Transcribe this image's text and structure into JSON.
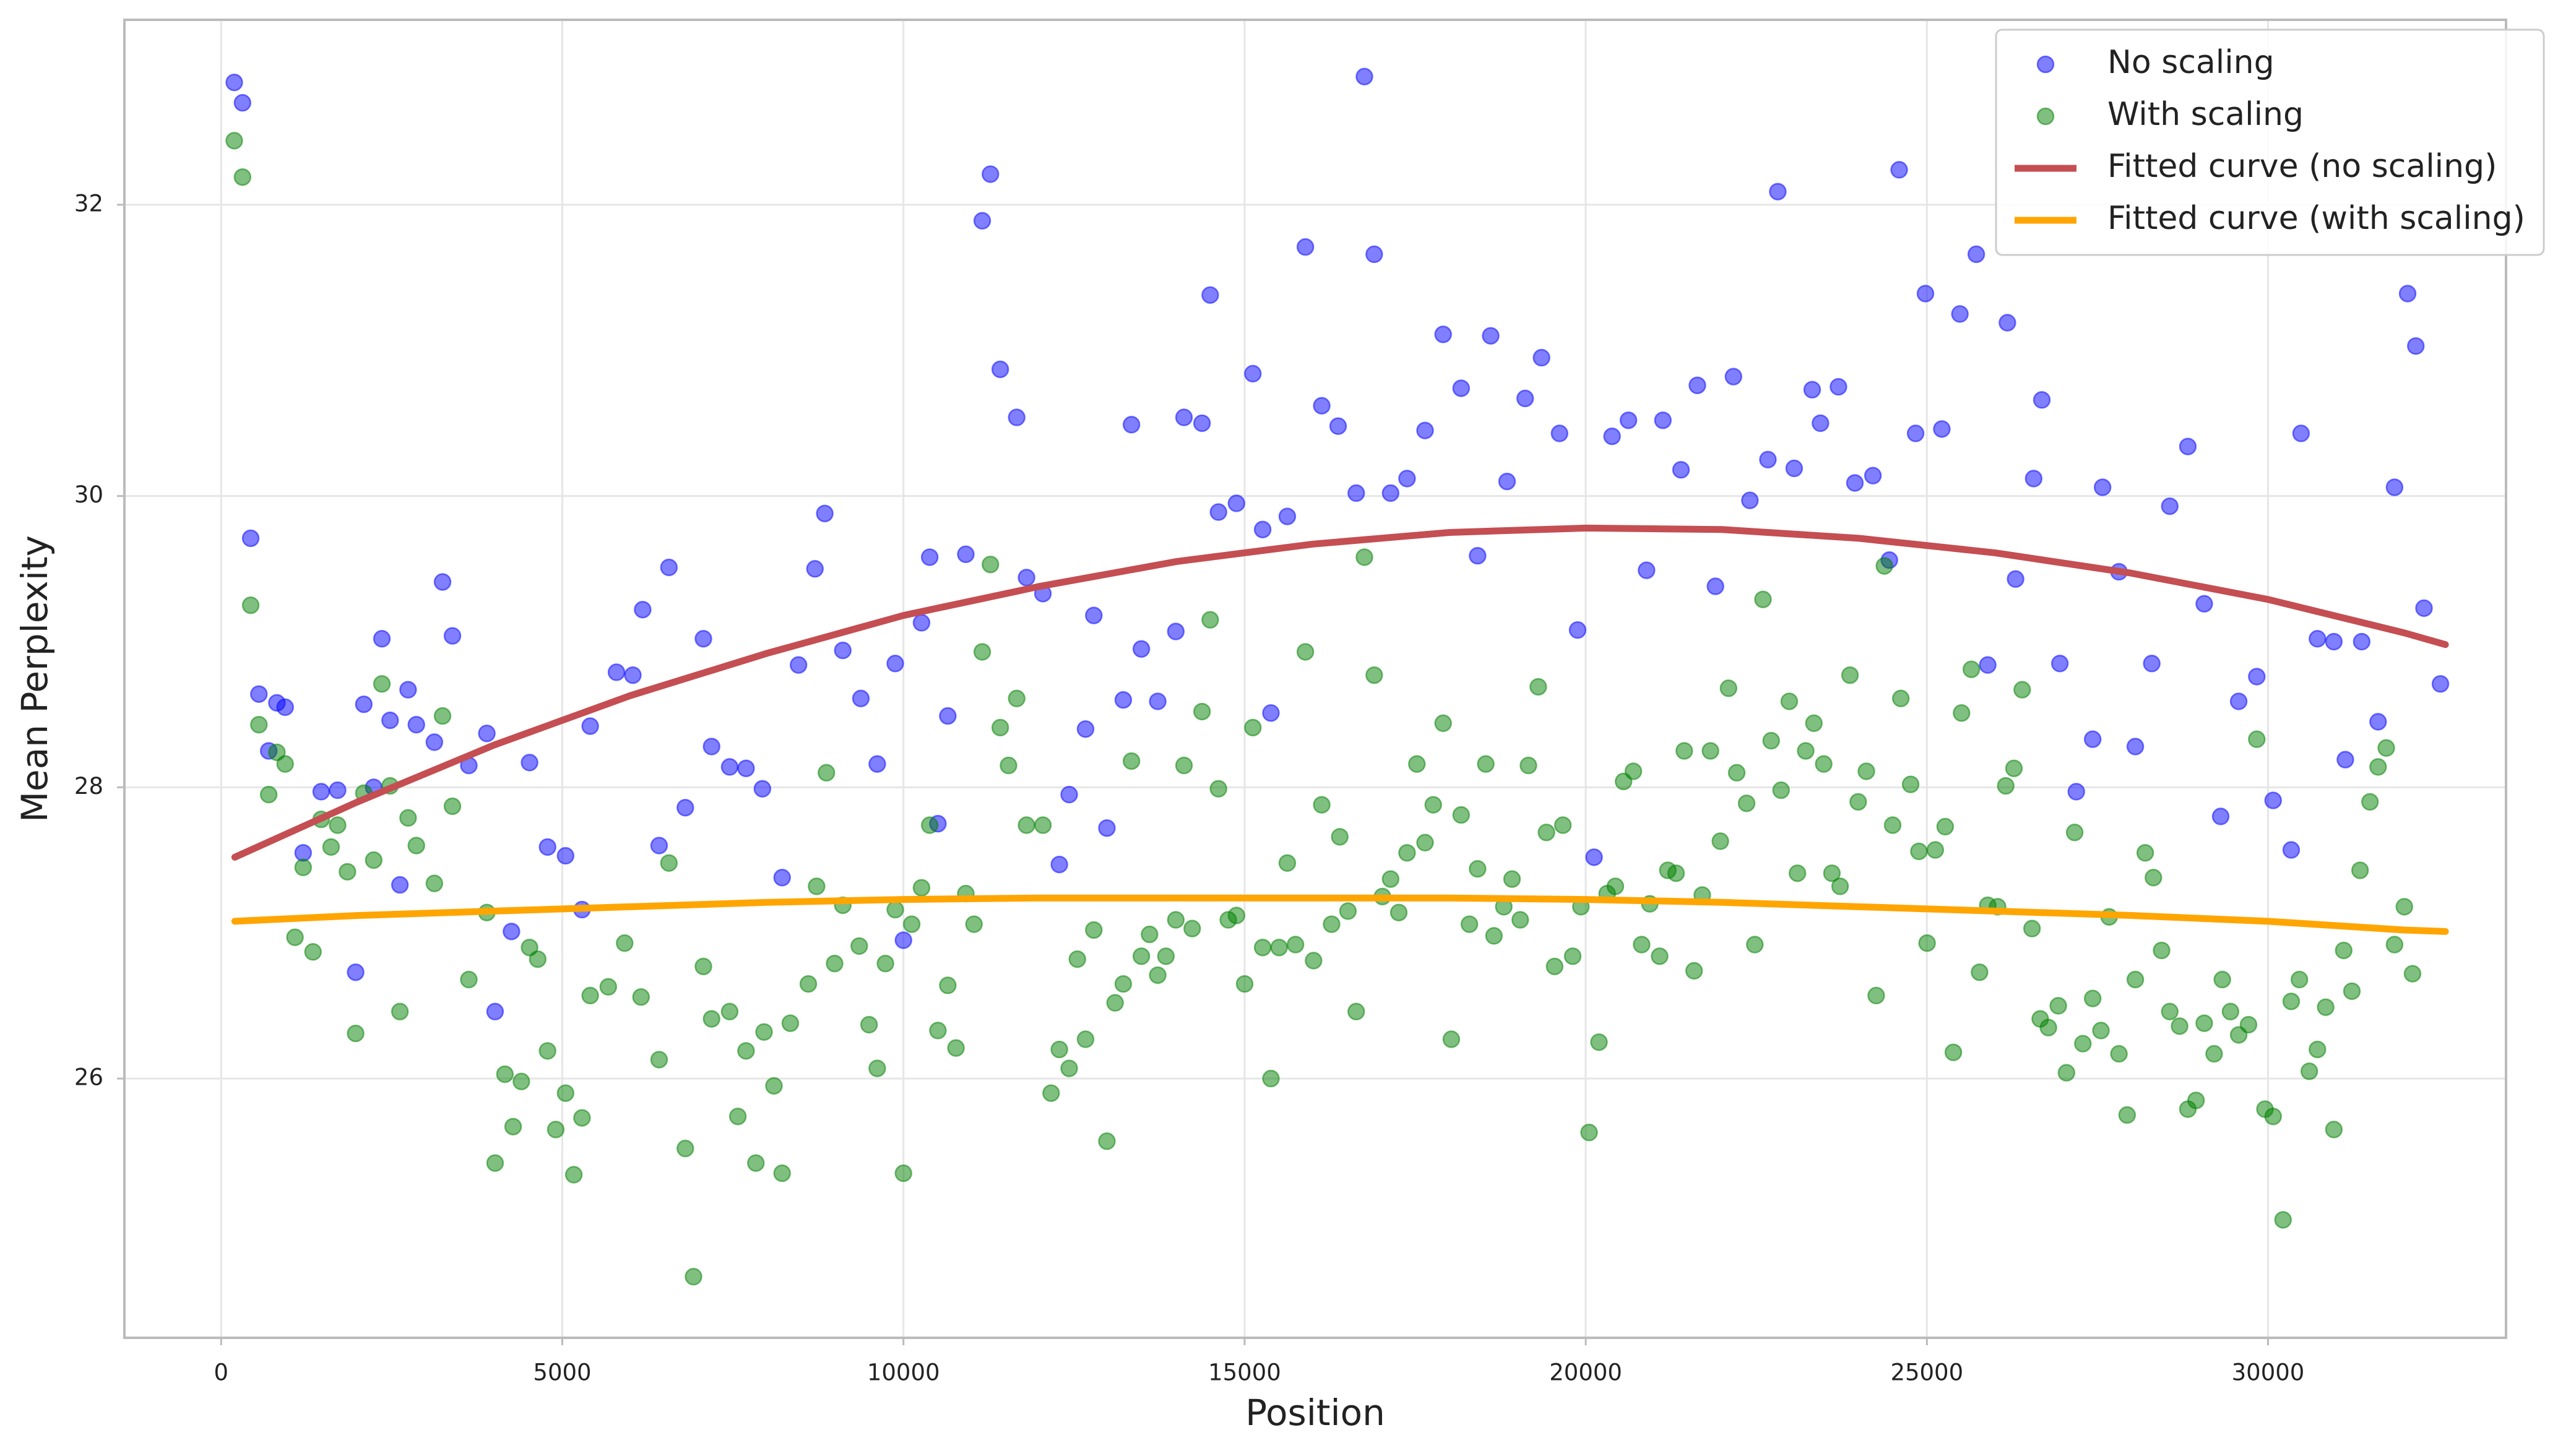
{
  "chart_data": {
    "type": "scatter",
    "xlabel": "Position",
    "ylabel": "Mean Perplexity",
    "xlim": [
      -1418,
      33488
    ],
    "ylim": [
      24.22,
      33.27
    ],
    "xticks": [
      0,
      5000,
      10000,
      15000,
      20000,
      25000,
      30000
    ],
    "yticks": [
      26,
      28,
      30,
      32
    ],
    "grid": true,
    "legend": "upper right",
    "series": [
      {
        "name": "No scaling",
        "type": "scatter",
        "color": "#0000ff",
        "alpha": 0.5,
        "x": [
          192,
          313,
          433,
          553,
          697,
          817,
          938,
          1202,
          1466,
          1707,
          1971,
          2091,
          2236,
          2356,
          2476,
          2620,
          2740,
          2861,
          3125,
          3245,
          3390,
          3630,
          3894,
          4015,
          4255,
          4520,
          4784,
          5048,
          5289,
          5409,
          5794,
          6034,
          6178,
          6419,
          6563,
          6803,
          7068,
          7188,
          7453,
          7693,
          7933,
          8222,
          8462,
          8703,
          8847,
          9111,
          9376,
          9616,
          9880,
          10000,
          10265,
          10385,
          10505,
          10650,
          10914,
          11155,
          11275,
          11419,
          11660,
          11804,
          12044,
          12285,
          12429,
          12669,
          12790,
          12982,
          13222,
          13342,
          13487,
          13727,
          13992,
          14112,
          14376,
          14496,
          14617,
          14881,
          15121,
          15265,
          15386,
          15626,
          15891,
          16131,
          16371,
          16636,
          16756,
          16900,
          17140,
          17381,
          17645,
          17910,
          18174,
          18415,
          18607,
          18847,
          19112,
          19352,
          19616,
          19881,
          20122,
          20386,
          20626,
          20891,
          21131,
          21396,
          21636,
          21901,
          22165,
          22406,
          22670,
          22815,
          23055,
          23319,
          23440,
          23704,
          23945,
          24209,
          24450,
          24594,
          24835,
          24979,
          25219,
          25484,
          25724,
          25892,
          26180,
          26300,
          26565,
          26685,
          26949,
          27190,
          27430,
          27575,
          27815,
          28055,
          28296,
          28560,
          28825,
          29065,
          29306,
          29570,
          29835,
          30075,
          30340,
          30484,
          30724,
          30965,
          31133,
          31373,
          31613,
          31854,
          32046,
          32166,
          32286,
          32527
        ],
        "values": [
          32.84,
          32.7,
          29.71,
          28.64,
          28.25,
          28.58,
          28.55,
          27.55,
          27.97,
          27.98,
          26.73,
          28.57,
          28.0,
          29.02,
          28.46,
          27.33,
          28.67,
          28.43,
          28.31,
          29.41,
          29.04,
          28.15,
          28.37,
          26.46,
          27.01,
          28.17,
          27.59,
          27.53,
          27.16,
          28.42,
          28.79,
          28.77,
          29.22,
          27.6,
          29.51,
          27.86,
          29.02,
          28.28,
          28.14,
          28.13,
          27.99,
          27.38,
          28.84,
          29.5,
          29.88,
          28.94,
          28.61,
          28.16,
          28.85,
          26.95,
          29.13,
          29.58,
          27.75,
          28.49,
          29.6,
          31.89,
          32.21,
          30.87,
          30.54,
          29.44,
          29.33,
          27.47,
          27.95,
          28.4,
          29.18,
          27.72,
          28.6,
          30.49,
          28.95,
          28.59,
          29.07,
          30.54,
          30.5,
          31.38,
          29.89,
          29.95,
          30.84,
          29.77,
          28.51,
          29.86,
          31.71,
          30.62,
          30.48,
          30.02,
          32.88,
          31.66,
          30.02,
          30.12,
          30.45,
          31.11,
          30.74,
          29.59,
          31.1,
          30.1,
          30.67,
          30.95,
          30.43,
          29.08,
          27.52,
          30.41,
          30.52,
          29.49,
          30.52,
          30.18,
          30.76,
          29.38,
          30.82,
          29.97,
          30.25,
          32.09,
          30.19,
          30.73,
          30.5,
          30.75,
          30.09,
          30.14,
          29.56,
          32.24,
          30.43,
          31.39,
          30.46,
          31.25,
          31.66,
          28.84,
          31.19,
          29.43,
          30.12,
          30.66,
          28.85,
          27.97,
          28.33,
          30.06,
          29.48,
          28.28,
          28.85,
          29.93,
          30.34,
          29.26,
          27.8,
          28.59,
          28.76,
          27.91,
          27.57,
          30.43,
          29.02,
          29.0,
          28.19,
          29.0,
          28.45,
          30.06,
          31.39,
          31.03,
          29.23,
          28.71
        ]
      },
      {
        "name": "With scaling",
        "type": "scatter",
        "color": "#008000",
        "alpha": 0.5,
        "x": [
          192,
          313,
          433,
          553,
          697,
          817,
          938,
          1082,
          1202,
          1346,
          1466,
          1611,
          1707,
          1851,
          1971,
          2091,
          2236,
          2356,
          2476,
          2620,
          2740,
          2861,
          3125,
          3245,
          3390,
          3630,
          3894,
          4015,
          4159,
          4279,
          4400,
          4520,
          4640,
          4784,
          4904,
          5048,
          5169,
          5289,
          5409,
          5674,
          5914,
          6154,
          6419,
          6563,
          6803,
          6923,
          7068,
          7188,
          7453,
          7573,
          7693,
          7837,
          7957,
          8102,
          8222,
          8342,
          8606,
          8727,
          8871,
          8991,
          9111,
          9352,
          9496,
          9616,
          9736,
          9880,
          10000,
          10121,
          10265,
          10385,
          10505,
          10650,
          10770,
          10914,
          11034,
          11155,
          11275,
          11419,
          11540,
          11660,
          11804,
          12044,
          12164,
          12285,
          12429,
          12549,
          12669,
          12790,
          12982,
          13102,
          13222,
          13342,
          13487,
          13607,
          13727,
          13847,
          13992,
          14112,
          14232,
          14376,
          14496,
          14617,
          14761,
          14881,
          15001,
          15121,
          15265,
          15386,
          15506,
          15626,
          15746,
          15891,
          16011,
          16131,
          16275,
          16395,
          16515,
          16636,
          16756,
          16900,
          17020,
          17140,
          17260,
          17381,
          17525,
          17645,
          17765,
          17910,
          18030,
          18174,
          18295,
          18415,
          18535,
          18655,
          18799,
          18920,
          19040,
          19160,
          19304,
          19424,
          19544,
          19665,
          19809,
          19929,
          20049,
          20194,
          20314,
          20434,
          20554,
          20698,
          20819,
          20939,
          21083,
          21203,
          21324,
          21444,
          21588,
          21708,
          21828,
          21973,
          22093,
          22213,
          22358,
          22478,
          22598,
          22718,
          22863,
          22983,
          23103,
          23224,
          23344,
          23488,
          23608,
          23728,
          23873,
          23993,
          24113,
          24257,
          24377,
          24498,
          24618,
          24762,
          24883,
          25003,
          25123,
          25268,
          25388,
          25508,
          25652,
          25772,
          25892,
          26036,
          26156,
          26276,
          26397,
          26541,
          26661,
          26781,
          26926,
          27046,
          27166,
          27286,
          27430,
          27551,
          27671,
          27815,
          27935,
          28055,
          28200,
          28320,
          28440,
          28560,
          28704,
          28825,
          28945,
          29065,
          29210,
          29330,
          29450,
          29570,
          29714,
          29835,
          29955,
          30075,
          30220,
          30340,
          30460,
          30605,
          30724,
          30845,
          30965,
          31109,
          31229,
          31349,
          31494,
          31613,
          31733,
          31854,
          31998,
          32118
        ],
        "values": [
          32.44,
          32.19,
          29.25,
          28.43,
          27.95,
          28.24,
          28.16,
          26.97,
          27.45,
          26.87,
          27.78,
          27.59,
          27.74,
          27.42,
          26.31,
          27.96,
          27.5,
          28.71,
          28.01,
          26.46,
          27.79,
          27.6,
          27.34,
          28.49,
          27.87,
          26.68,
          27.14,
          25.42,
          26.03,
          25.67,
          25.98,
          26.9,
          26.82,
          26.19,
          25.65,
          25.9,
          25.34,
          25.73,
          26.57,
          26.63,
          26.93,
          26.56,
          26.13,
          27.48,
          25.52,
          24.64,
          26.77,
          26.41,
          26.46,
          25.74,
          26.19,
          25.42,
          26.32,
          25.95,
          25.35,
          26.38,
          26.65,
          27.32,
          28.1,
          26.79,
          27.19,
          26.91,
          26.37,
          26.07,
          26.79,
          27.16,
          25.35,
          27.06,
          27.31,
          27.74,
          26.33,
          26.64,
          26.21,
          27.27,
          27.06,
          28.93,
          29.53,
          28.41,
          28.15,
          28.61,
          27.74,
          27.74,
          25.9,
          26.2,
          26.07,
          26.82,
          26.27,
          27.02,
          25.57,
          26.52,
          26.65,
          28.18,
          26.84,
          26.99,
          26.71,
          26.84,
          27.09,
          28.15,
          27.03,
          28.52,
          29.15,
          27.99,
          27.09,
          27.12,
          26.65,
          28.41,
          26.9,
          26.0,
          26.9,
          27.48,
          26.92,
          28.93,
          26.81,
          27.88,
          27.06,
          27.66,
          27.15,
          26.46,
          29.58,
          28.77,
          27.25,
          27.37,
          27.14,
          27.55,
          28.16,
          27.62,
          27.88,
          28.44,
          26.27,
          27.81,
          27.06,
          27.44,
          28.16,
          26.98,
          27.18,
          27.37,
          27.09,
          28.15,
          28.69,
          27.69,
          26.77,
          27.74,
          26.84,
          27.18,
          25.63,
          26.25,
          27.27,
          27.32,
          28.04,
          28.11,
          26.92,
          27.2,
          26.84,
          27.43,
          27.41,
          28.25,
          26.74,
          27.26,
          28.25,
          27.63,
          28.68,
          28.1,
          27.89,
          26.92,
          29.29,
          28.32,
          27.98,
          28.59,
          27.41,
          28.25,
          28.44,
          28.16,
          27.41,
          27.32,
          28.77,
          27.9,
          28.11,
          26.57,
          29.52,
          27.74,
          28.61,
          28.02,
          27.56,
          26.93,
          27.57,
          27.73,
          26.18,
          28.51,
          28.81,
          26.73,
          27.19,
          27.18,
          28.01,
          28.13,
          28.67,
          27.03,
          26.41,
          26.35,
          26.5,
          26.04,
          27.69,
          26.24,
          26.55,
          26.33,
          27.11,
          26.17,
          25.75,
          26.68,
          27.55,
          27.38,
          26.88,
          26.46,
          26.36,
          25.79,
          25.85,
          26.38,
          26.17,
          26.68,
          26.46,
          26.3,
          26.37,
          28.33,
          25.79,
          25.74,
          25.03,
          26.53,
          26.68,
          26.05,
          26.2,
          26.49,
          25.65,
          26.88,
          26.6,
          27.43,
          27.9,
          28.14,
          28.27,
          26.92,
          27.18,
          26.72
        ]
      },
      {
        "name": "Fitted curve (no scaling)",
        "type": "line",
        "color": "#c44e52",
        "x": [
          200,
          2000,
          4000,
          6000,
          8000,
          10000,
          12000,
          14000,
          16000,
          18000,
          20000,
          22000,
          24000,
          26000,
          28000,
          30000,
          32000,
          32600
        ],
        "values": [
          27.52,
          27.9,
          28.29,
          28.63,
          28.92,
          29.18,
          29.38,
          29.55,
          29.67,
          29.75,
          29.78,
          29.77,
          29.71,
          29.61,
          29.47,
          29.29,
          29.06,
          28.98
        ]
      },
      {
        "name": "Fitted curve (with scaling)",
        "type": "line",
        "color": "#ffa500",
        "x": [
          200,
          2000,
          4000,
          6000,
          8000,
          10000,
          12000,
          14000,
          16000,
          18000,
          20000,
          22000,
          24000,
          26000,
          28000,
          30000,
          32000,
          32600
        ],
        "values": [
          27.08,
          27.12,
          27.15,
          27.18,
          27.21,
          27.23,
          27.24,
          27.24,
          27.24,
          27.24,
          27.23,
          27.21,
          27.18,
          27.15,
          27.12,
          27.08,
          27.02,
          27.01
        ]
      }
    ]
  }
}
